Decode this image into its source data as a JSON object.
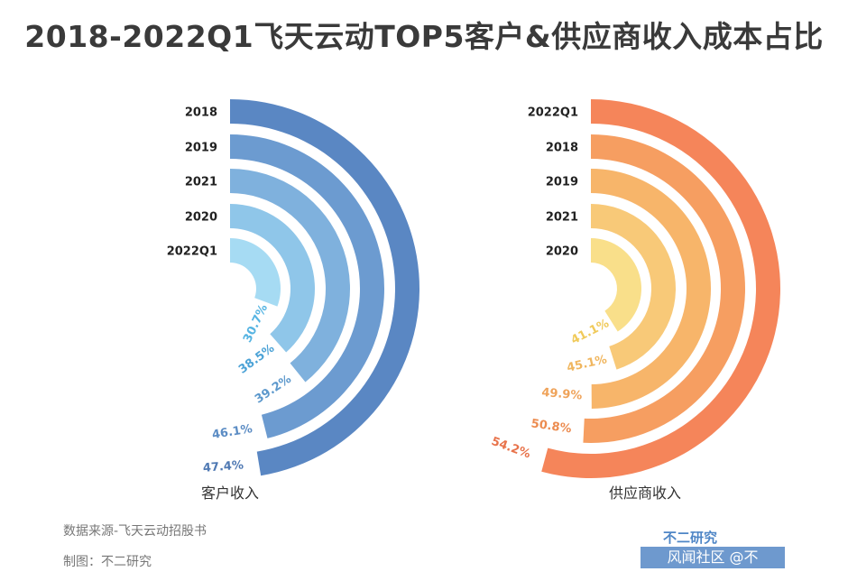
{
  "title": "2018-2022Q1飞天云动TOP5客户&供应商收入成本占比",
  "chart_data": [
    {
      "type": "radial-bar",
      "name": "客户收入",
      "xlabel": "客户收入",
      "unit": "%",
      "categories": [
        "2018",
        "2019",
        "2021",
        "2020",
        "2022Q1"
      ],
      "values": [
        47.4,
        46.1,
        39.2,
        38.5,
        30.7
      ],
      "value_labels": [
        "47.4%",
        "46.1%",
        "39.2%",
        "38.5%",
        "30.7%"
      ],
      "colors": [
        "#5a87c3",
        "#6c9bd0",
        "#7fb1dd",
        "#8fc6e9",
        "#a6dbf3"
      ],
      "label_colors": [
        "#4f79b3",
        "#5b8cc4",
        "#5c98cc",
        "#4ba2d6",
        "#56b4e2"
      ]
    },
    {
      "type": "radial-bar",
      "name": "供应商收入",
      "xlabel": "供应商收入",
      "unit": "%",
      "categories": [
        "2022Q1",
        "2018",
        "2019",
        "2021",
        "2020"
      ],
      "values": [
        54.2,
        50.8,
        49.9,
        45.1,
        41.1
      ],
      "value_labels": [
        "54.2%",
        "50.8%",
        "49.9%",
        "45.1%",
        "41.1%"
      ],
      "colors": [
        "#f5855a",
        "#f69e61",
        "#f7b56a",
        "#f8c978",
        "#f9df8a"
      ],
      "label_colors": [
        "#e8734b",
        "#ec8c50",
        "#efa35a",
        "#f0b65f",
        "#f0ca5a"
      ]
    }
  ],
  "footer": {
    "source": "数据来源-飞天云动招股书",
    "maker": "制图：不二研究"
  },
  "watermark": {
    "brand": "不二研究",
    "forum": "风闻社区 @不"
  }
}
